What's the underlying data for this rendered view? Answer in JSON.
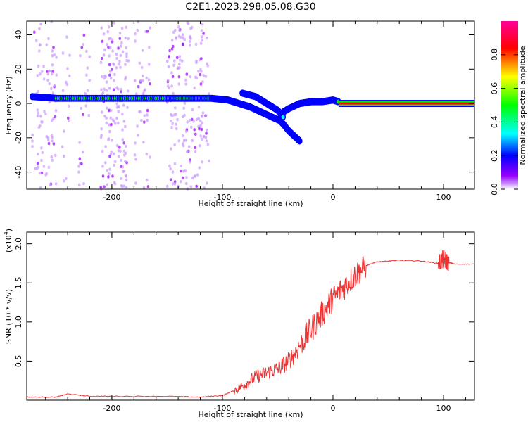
{
  "title": "C2E1.2023.298.05.08.G30",
  "chart_data": [
    {
      "type": "heatmap",
      "xlabel": "Height of straight line (km)",
      "ylabel": "Frequency (Hz)",
      "xlim": [
        -277,
        128
      ],
      "ylim": [
        -50,
        48
      ],
      "xticks": [
        -200,
        -100,
        0,
        100
      ],
      "yticks": [
        -40,
        -20,
        0,
        20,
        40
      ],
      "colorbar": {
        "label": "Normalized spectral amplitude",
        "range": [
          0,
          1
        ],
        "ticks": [
          0.0,
          0.2,
          0.4,
          0.6,
          0.8
        ],
        "colormap": "hsv"
      },
      "tracks": [
        {
          "x": [
            -272,
            -250,
            -200,
            -150,
            -110,
            -95,
            -85,
            -75,
            -65,
            -55,
            -48,
            -45
          ],
          "y": [
            4,
            3,
            3,
            3,
            3,
            2,
            0,
            -2,
            -5,
            -8,
            -10,
            -12
          ],
          "amplitude": 0.55
        },
        {
          "x": [
            -82,
            -70,
            -60,
            -50,
            -45
          ],
          "y": [
            6,
            4,
            0,
            -4,
            -8
          ],
          "amplitude": 0.4
        },
        {
          "x": [
            -45,
            -40,
            -35,
            -30
          ],
          "y": [
            -12,
            -16,
            -19,
            -22
          ],
          "amplitude": 0.25
        },
        {
          "x": [
            -45,
            -40,
            -30,
            -20,
            -10,
            0,
            5
          ],
          "y": [
            -5,
            -3,
            0,
            1,
            1,
            2,
            1
          ],
          "amplitude": 0.6
        },
        {
          "x": [
            5,
            128
          ],
          "y": [
            0,
            0
          ],
          "amplitude": 0.9
        }
      ]
    },
    {
      "type": "line",
      "xlabel": "Height of straight line (km)",
      "ylabel": "SNR (10 * v/v)",
      "yscale_label": "(x10",
      "yscale_exp": "4",
      "xlim": [
        -277,
        128
      ],
      "ylim": [
        0,
        2.15
      ],
      "xticks": [
        -200,
        -100,
        0,
        100
      ],
      "yticks": [
        0.5,
        1.0,
        1.5,
        2.0
      ],
      "ytick_labels": [
        "0.5",
        "1.0",
        "1.5",
        "2.0"
      ],
      "series": [
        {
          "color": "#ee3333",
          "x": [
            -277,
            -250,
            -240,
            -220,
            -200,
            -150,
            -120,
            -100,
            -90,
            -80,
            -70,
            -60,
            -50,
            -40,
            -30,
            -20,
            -10,
            0,
            10,
            20,
            30,
            40,
            50,
            60,
            80,
            95,
            100,
            105,
            110,
            128
          ],
          "y": [
            0.04,
            0.04,
            0.08,
            0.05,
            0.05,
            0.05,
            0.04,
            0.06,
            0.12,
            0.2,
            0.3,
            0.35,
            0.4,
            0.5,
            0.7,
            0.9,
            1.1,
            1.3,
            1.45,
            1.6,
            1.72,
            1.77,
            1.78,
            1.79,
            1.78,
            1.75,
            1.8,
            1.76,
            1.74,
            1.74
          ]
        }
      ]
    }
  ]
}
